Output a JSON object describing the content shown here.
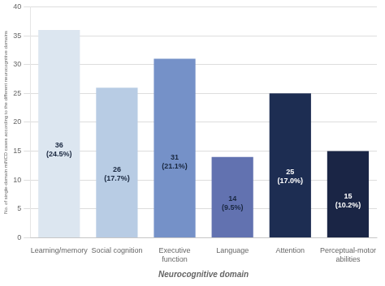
{
  "chart_data": {
    "type": "bar",
    "xlabel": "Neurocognitive domain",
    "ylabel": "No. of single-domain miNCD cases according to the different neurocognitive domains",
    "categories": [
      "Learning/memory",
      "Social cognition",
      "Executive\nfunction",
      "Language",
      "Attention",
      "Perceptual-motor\nabilities"
    ],
    "values": [
      36,
      26,
      31,
      14,
      25,
      15
    ],
    "value_labels": [
      "36\n(24.5%)",
      "26\n(17.7%)",
      "31\n(21.1%)",
      "14\n(9.5%)",
      "25\n(17.0%)",
      "15\n(10.2%)"
    ],
    "data_labels": true,
    "colors": [
      "#dce6f0",
      "#b8cce4",
      "#7591c8",
      "#6272b0",
      "#1d2d52",
      "#1a2545"
    ],
    "ylim": [
      0,
      40
    ],
    "yticks": [
      0,
      5,
      10,
      15,
      20,
      25,
      30,
      35,
      40
    ],
    "grid": true
  }
}
